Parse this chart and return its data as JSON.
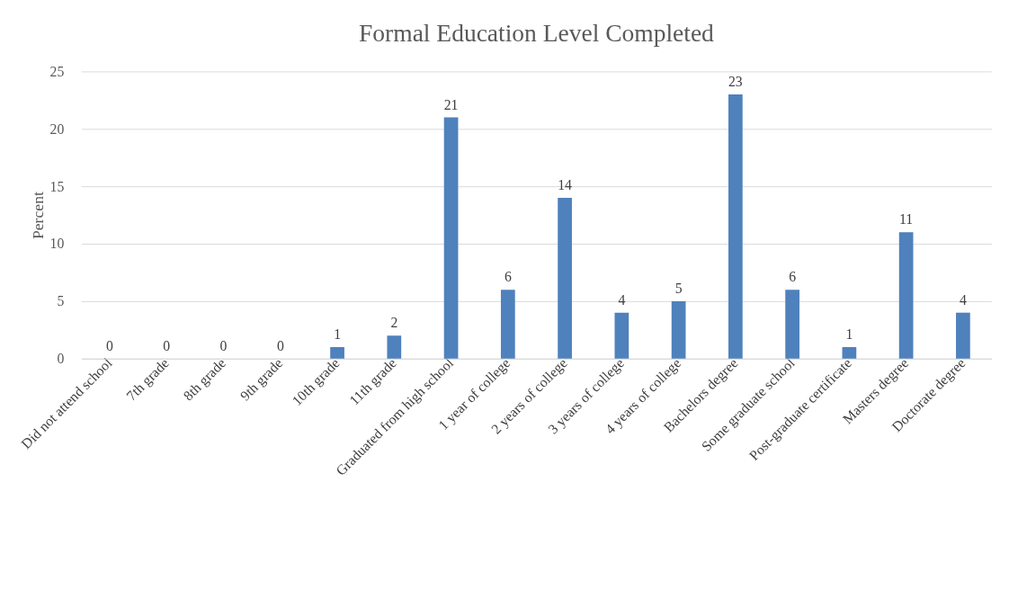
{
  "chart_data": {
    "type": "bar",
    "title": "Formal Education Level Completed",
    "ylabel": "Percent",
    "categories": [
      "Did not attend school",
      "7th grade",
      "8th grade",
      "9th grade",
      "10th grade",
      "11th grade",
      "Graduated from high school",
      "1 year of college",
      "2 years of college",
      "3 years of college",
      "4 years of college",
      "Bachelors degree",
      "Some graduate school",
      "Post-graduate certificate",
      "Masters degree",
      "Doctorate degree"
    ],
    "values": [
      0,
      0,
      0,
      0,
      1,
      2,
      21,
      6,
      14,
      4,
      5,
      23,
      6,
      1,
      11,
      4
    ],
    "color": "#4f81bd",
    "ylim": [
      0,
      25
    ],
    "yticks": [
      0,
      5,
      10,
      15,
      20,
      25
    ],
    "grid": "y",
    "data_labels": true
  }
}
